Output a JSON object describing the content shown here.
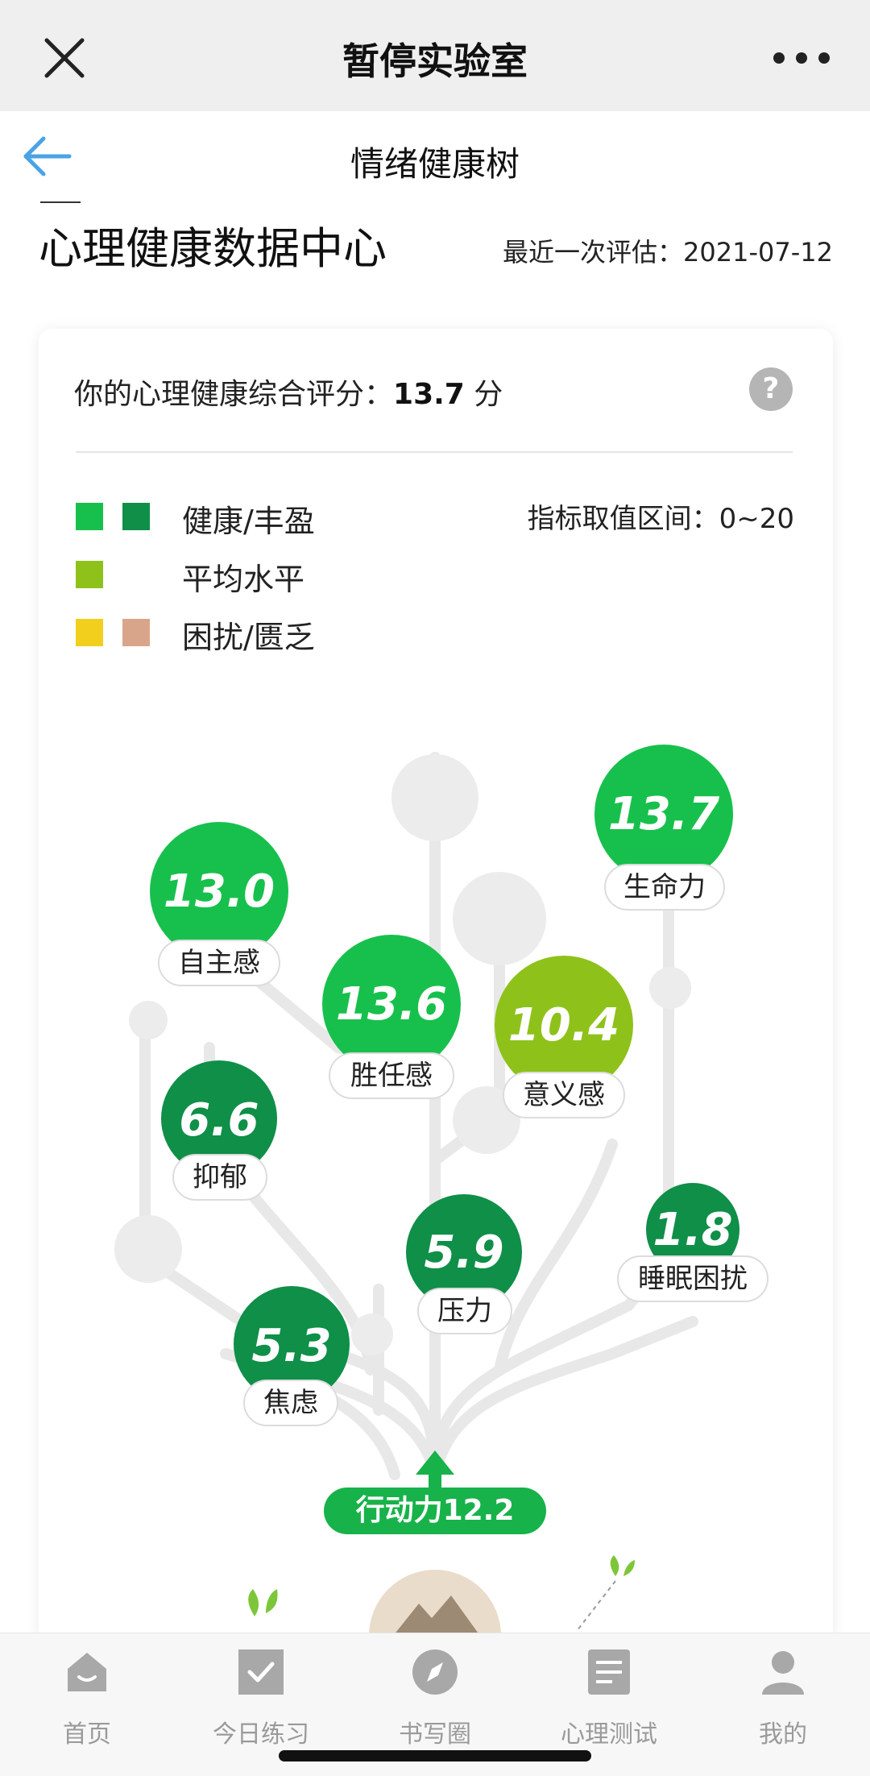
{
  "wechat_bar": {
    "title": "暂停实验室",
    "close_icon": "close-icon",
    "more_icon": "more-dots-icon"
  },
  "nav": {
    "title": "情绪健康树",
    "back_icon": "back-arrow-icon"
  },
  "header": {
    "page_title": "心理健康数据中心",
    "last_eval": "最近一次评估：2021-07-12"
  },
  "card": {
    "score_prefix": "你的心理健康综合评分：",
    "score_value": "13.7",
    "score_unit": "分",
    "help_symbol": "?",
    "legend": [
      {
        "label": "健康/丰盈",
        "colors": [
          "#17c04c",
          "#0f8f48"
        ]
      },
      {
        "label": "平均水平",
        "colors": [
          "#8ec21a"
        ]
      },
      {
        "label": "困扰/匮乏",
        "colors": [
          "#f2cf1c",
          "#d9a58a"
        ]
      }
    ],
    "range": "指标取值区间：0~20"
  },
  "tree": {
    "nodes": [
      {
        "id": "vitality",
        "value": "13.7",
        "label": "生命力",
        "color": "#17c04c"
      },
      {
        "id": "autonomy",
        "value": "13.0",
        "label": "自主感",
        "color": "#17c04c"
      },
      {
        "id": "competence",
        "value": "13.6",
        "label": "胜任感",
        "color": "#17c04c"
      },
      {
        "id": "meaning",
        "value": "10.4",
        "label": "意义感",
        "color": "#8ec21a"
      },
      {
        "id": "depression",
        "value": "6.6",
        "label": "抑郁",
        "color": "#0f8f48"
      },
      {
        "id": "stress",
        "value": "5.9",
        "label": "压力",
        "color": "#0f8f48"
      },
      {
        "id": "sleep",
        "value": "1.8",
        "label": "睡眠困扰",
        "color": "#0f8f48"
      },
      {
        "id": "anxiety",
        "value": "5.3",
        "label": "焦虑",
        "color": "#0f8f48"
      }
    ],
    "action": "行动力12.2"
  },
  "tabs": [
    {
      "label": "首页",
      "icon": "home-icon"
    },
    {
      "label": "今日练习",
      "icon": "checkbox-icon"
    },
    {
      "label": "书写圈",
      "icon": "compass-icon"
    },
    {
      "label": "心理测试",
      "icon": "document-icon"
    },
    {
      "label": "我的",
      "icon": "person-icon"
    }
  ]
}
